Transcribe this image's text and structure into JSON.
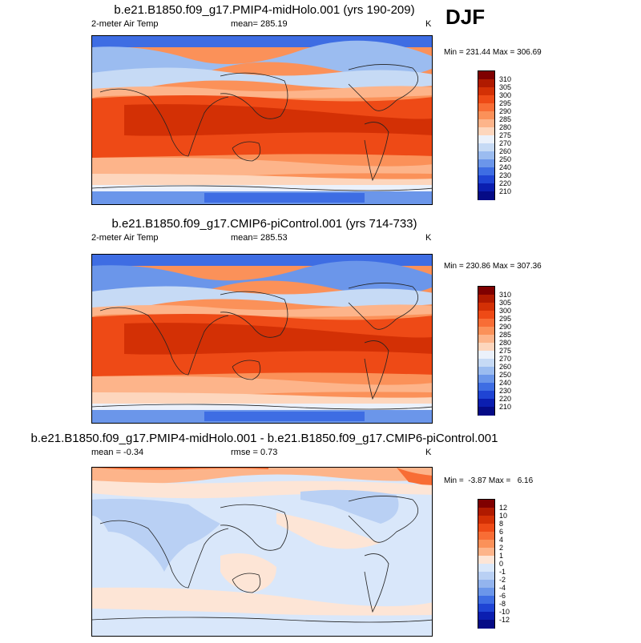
{
  "season_label": "DJF",
  "panels": [
    {
      "title": "b.e21.B1850.f09_g17.PMIP4-midHolo.001 (yrs 190-209)",
      "variable": "2-meter Air Temp",
      "mean_text": "mean= 285.19",
      "units": "K",
      "minmax_text": "Min = 231.44 Max = 306.69",
      "colorbar_labels": [
        "310",
        "305",
        "300",
        "295",
        "290",
        "285",
        "280",
        "275",
        "270",
        "260",
        "250",
        "240",
        "230",
        "220",
        "210"
      ],
      "colorbar_colors": [
        "#7f0000",
        "#b01a00",
        "#d33005",
        "#ee4a16",
        "#f86d35",
        "#fb9159",
        "#fdb48a",
        "#fdd6bd",
        "#ebf1fb",
        "#c6daf5",
        "#9bbcf0",
        "#6b96ea",
        "#3e6de3",
        "#1f44d4",
        "#0b1eb0",
        "#050b86"
      ]
    },
    {
      "title": "b.e21.B1850.f09_g17.CMIP6-piControl.001 (yrs 714-733)",
      "variable": "2-meter Air Temp",
      "mean_text": "mean= 285.53",
      "units": "K",
      "minmax_text": "Min = 230.86 Max = 307.36",
      "colorbar_labels": [
        "310",
        "305",
        "300",
        "295",
        "290",
        "285",
        "280",
        "275",
        "270",
        "260",
        "250",
        "240",
        "230",
        "220",
        "210"
      ],
      "colorbar_colors": [
        "#7f0000",
        "#b01a00",
        "#d33005",
        "#ee4a16",
        "#f86d35",
        "#fb9159",
        "#fdb48a",
        "#fdd6bd",
        "#ebf1fb",
        "#c6daf5",
        "#9bbcf0",
        "#6b96ea",
        "#3e6de3",
        "#1f44d4",
        "#0b1eb0",
        "#050b86"
      ]
    },
    {
      "title": "b.e21.B1850.f09_g17.PMIP4-midHolo.001 - b.e21.B1850.f09_g17.CMIP6-piControl.001",
      "mean_text": "mean =  -0.34",
      "rmse_text": "rmse =   0.73",
      "units": "K",
      "minmax_text": "Min =  -3.87 Max =   6.16",
      "colorbar_labels": [
        "12",
        "10",
        "8",
        "6",
        "4",
        "2",
        "1",
        "0",
        "-1",
        "-2",
        "-4",
        "-6",
        "-8",
        "-10",
        "-12"
      ],
      "colorbar_colors": [
        "#7f0000",
        "#b01a00",
        "#d33005",
        "#ee4a16",
        "#f86d35",
        "#fb9159",
        "#fdb48a",
        "#fde5d6",
        "#d9e7fa",
        "#b9d0f4",
        "#93b4ee",
        "#6b96ea",
        "#3e6de3",
        "#1f44d4",
        "#0b1eb0",
        "#050b86"
      ]
    }
  ]
}
